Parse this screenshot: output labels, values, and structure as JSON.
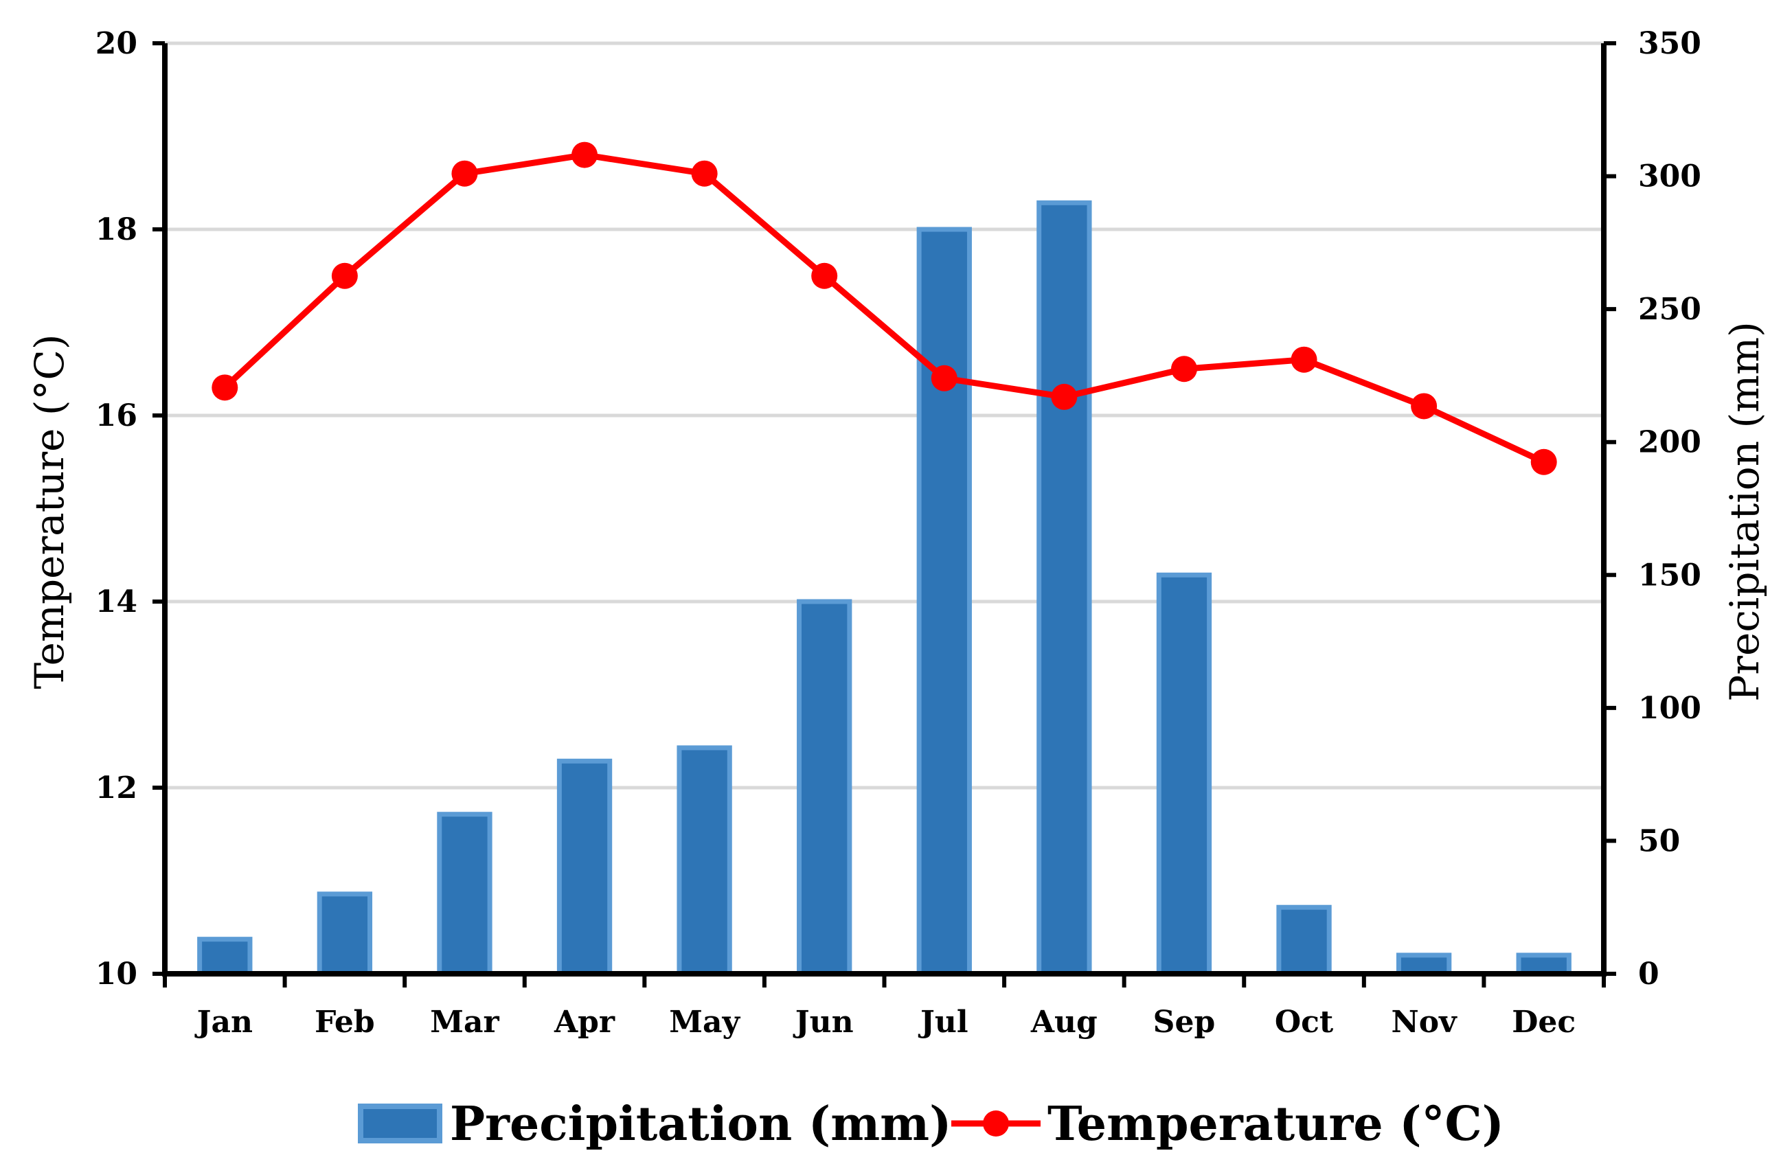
{
  "chart_data": {
    "type": "bar+line",
    "title": "",
    "categories": [
      "Jan",
      "Feb",
      "Mar",
      "Apr",
      "May",
      "Jun",
      "Jul",
      "Aug",
      "Sep",
      "Oct",
      "Nov",
      "Dec"
    ],
    "series": [
      {
        "name": "Precipitation (mm)",
        "type": "bar",
        "axis": "right",
        "color": "#2e75b6",
        "edge_color": "#5b9bd5",
        "values": [
          13,
          30,
          60,
          80,
          85,
          140,
          280,
          290,
          150,
          25,
          7,
          7
        ]
      },
      {
        "name": "Temperature (°C)",
        "type": "line",
        "axis": "left",
        "color": "#ff0000",
        "values": [
          16.3,
          17.5,
          18.6,
          18.8,
          18.6,
          17.5,
          16.4,
          16.2,
          16.5,
          16.6,
          16.1,
          15.5
        ]
      }
    ],
    "y_left": {
      "label": "Temperature (°C)",
      "ylim": [
        10,
        20
      ],
      "ticks": [
        10,
        12,
        14,
        16,
        18,
        20
      ]
    },
    "y_right": {
      "label": "Precipitation (mm)",
      "ylim": [
        0,
        350
      ],
      "ticks": [
        0,
        50,
        100,
        150,
        200,
        250,
        300,
        350
      ]
    },
    "grid": true,
    "legend_position": "bottom-center",
    "legend": [
      "Precipitation (mm)",
      "Temperature (°C)"
    ]
  }
}
